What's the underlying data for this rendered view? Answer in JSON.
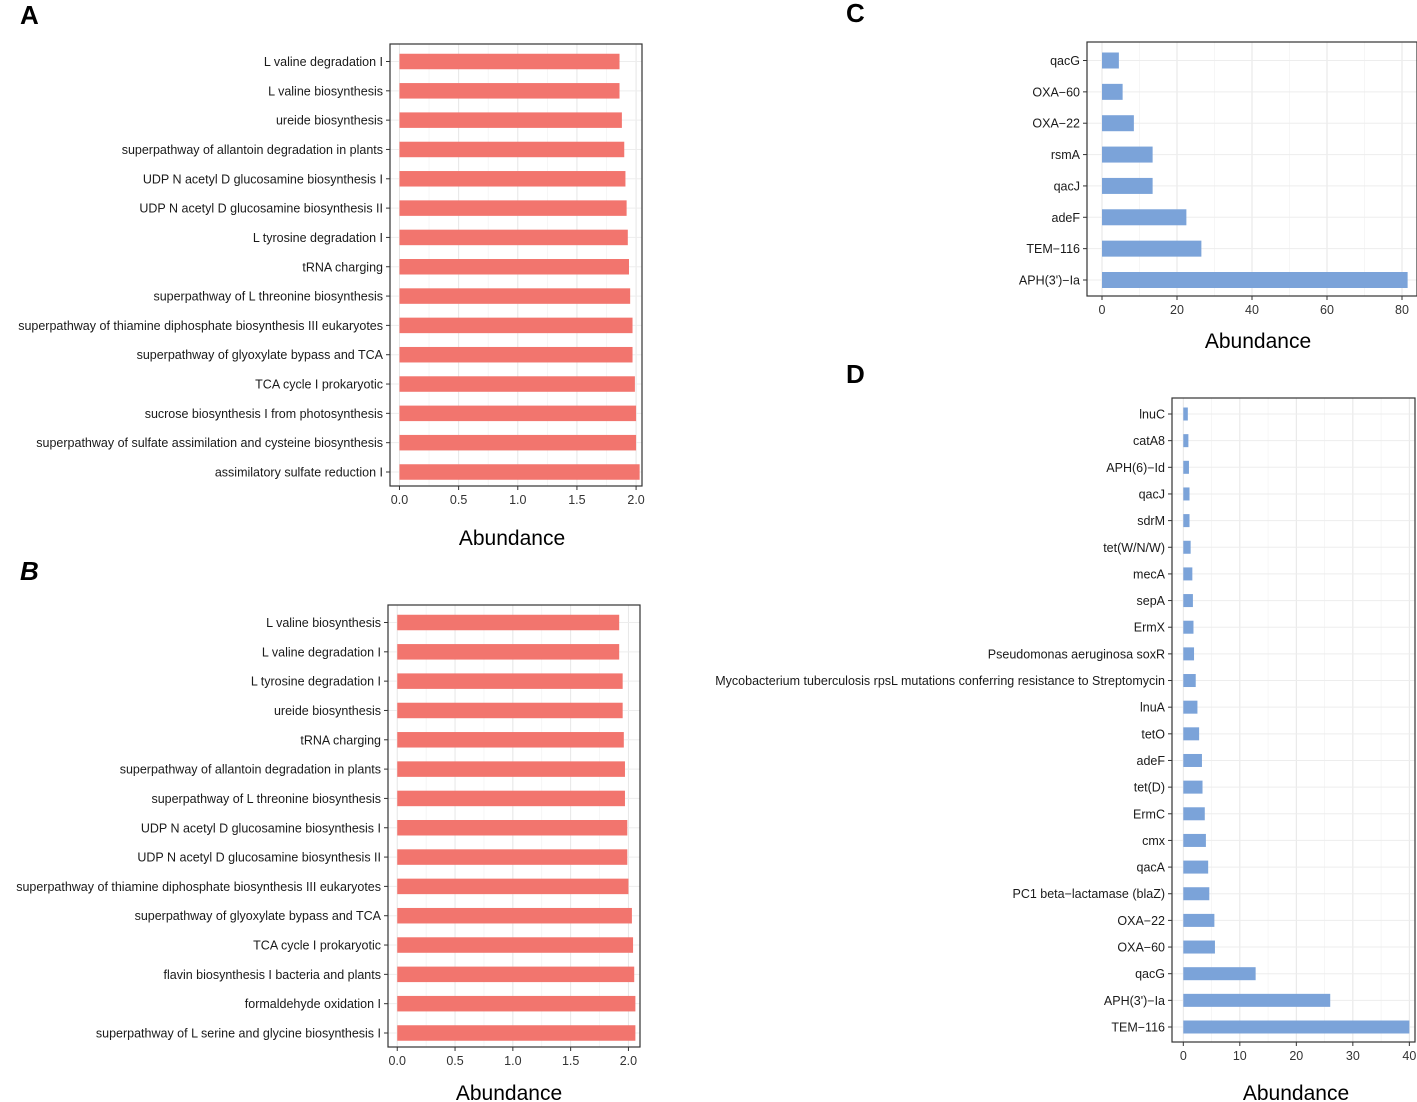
{
  "chart_data": [
    {
      "panel": "A",
      "type": "bar",
      "orientation": "horizontal",
      "title": "",
      "xlabel": "Abundance",
      "ylabel": "",
      "color": "#F2756E",
      "xlim": [
        -0.08,
        2.05
      ],
      "xticks": [
        0,
        0.5,
        1.0,
        1.5,
        2.0
      ],
      "xtick_labels": [
        "0.0",
        "0.5",
        "1.0",
        "1.5",
        "2.0"
      ],
      "grid": true,
      "categories": [
        "L valine degradation I",
        "L valine biosynthesis",
        "ureide biosynthesis",
        "superpathway of allantoin degradation in plants",
        "UDP N acetyl D glucosamine biosynthesis I",
        "UDP N acetyl D glucosamine biosynthesis II",
        "L tyrosine degradation I",
        "tRNA charging",
        "superpathway of L threonine biosynthesis",
        "superpathway of thiamine diphosphate biosynthesis III eukaryotes",
        "superpathway of glyoxylate bypass and TCA",
        "TCA cycle I prokaryotic",
        "sucrose biosynthesis I from photosynthesis",
        "superpathway of sulfate assimilation and cysteine biosynthesis",
        "assimilatory sulfate reduction I"
      ],
      "values": [
        1.86,
        1.86,
        1.88,
        1.9,
        1.91,
        1.92,
        1.93,
        1.94,
        1.95,
        1.97,
        1.97,
        1.99,
        2.0,
        2.0,
        2.03
      ]
    },
    {
      "panel": "B",
      "type": "bar",
      "orientation": "horizontal",
      "title": "",
      "xlabel": "Abundance",
      "ylabel": "",
      "color": "#F2756E",
      "xlim": [
        -0.08,
        2.1
      ],
      "xticks": [
        0,
        0.5,
        1.0,
        1.5,
        2.0
      ],
      "xtick_labels": [
        "0.0",
        "0.5",
        "1.0",
        "1.5",
        "2.0"
      ],
      "grid": true,
      "categories": [
        "L valine biosynthesis",
        "L valine degradation I",
        "L tyrosine degradation I",
        "ureide biosynthesis",
        "tRNA charging",
        "superpathway of allantoin degradation in plants",
        "superpathway of L threonine biosynthesis",
        "UDP N acetyl D glucosamine biosynthesis I",
        "UDP N acetyl D glucosamine biosynthesis II",
        "superpathway of thiamine diphosphate biosynthesis III eukaryotes",
        "superpathway of glyoxylate bypass and TCA",
        "TCA cycle I prokaryotic",
        "flavin biosynthesis I bacteria and plants",
        "formaldehyde oxidation I",
        "superpathway of L serine and glycine biosynthesis I"
      ],
      "values": [
        1.92,
        1.92,
        1.95,
        1.95,
        1.96,
        1.97,
        1.97,
        1.99,
        1.99,
        2.0,
        2.03,
        2.04,
        2.05,
        2.06,
        2.06
      ]
    },
    {
      "panel": "C",
      "type": "bar",
      "orientation": "horizontal",
      "title": "",
      "xlabel": "Abundance",
      "ylabel": "",
      "color": "#7BA3D9",
      "xlim": [
        -4,
        84
      ],
      "xticks": [
        0,
        20,
        40,
        60,
        80
      ],
      "xtick_labels": [
        "0",
        "20",
        "40",
        "60",
        "80"
      ],
      "grid": true,
      "categories": [
        "qacG",
        "OXA−60",
        "OXA−22",
        "rsmA",
        "qacJ",
        "adeF",
        "TEM−116",
        "APH(3')−Ia"
      ],
      "values": [
        4.5,
        5.5,
        8.5,
        13.5,
        13.5,
        22.5,
        26.5,
        81.5
      ]
    },
    {
      "panel": "D",
      "type": "bar",
      "orientation": "horizontal",
      "title": "",
      "xlabel": "Abundance",
      "ylabel": "",
      "color": "#7BA3D9",
      "xlim": [
        -2,
        41
      ],
      "xticks": [
        0,
        10,
        20,
        30,
        40
      ],
      "xtick_labels": [
        "0",
        "10",
        "20",
        "30",
        "40"
      ],
      "grid": true,
      "categories": [
        "lnuC",
        "catA8",
        "APH(6)−Id",
        "qacJ",
        "sdrM",
        "tet(W/N/W)",
        "mecA",
        "sepA",
        "ErmX",
        "Pseudomonas aeruginosa soxR",
        "Mycobacterium tuberculosis rpsL mutations conferring resistance to Streptomycin",
        "lnuA",
        "tetO",
        "adeF",
        "tet(D)",
        "ErmC",
        "cmx",
        "qacA",
        "PC1 beta−lactamase (blaZ)",
        "OXA−22",
        "OXA−60",
        "qacG",
        "APH(3')−Ia",
        "TEM−116"
      ],
      "values": [
        0.8,
        0.9,
        1.0,
        1.1,
        1.1,
        1.3,
        1.6,
        1.7,
        1.8,
        1.9,
        2.2,
        2.5,
        2.8,
        3.3,
        3.4,
        3.8,
        4.0,
        4.4,
        4.6,
        5.5,
        5.6,
        12.8,
        26.0,
        40.0
      ]
    }
  ],
  "panels": [
    {
      "letter": "A",
      "italic": false
    },
    {
      "letter": "B",
      "italic": true
    },
    {
      "letter": "C",
      "italic": false
    },
    {
      "letter": "D",
      "italic": false
    }
  ]
}
